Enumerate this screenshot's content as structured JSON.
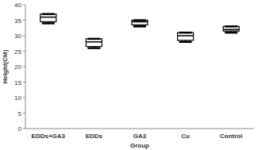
{
  "chart_data": {
    "type": "box",
    "x_label": "Group",
    "y_label": "Height(CM)",
    "categories": [
      "EDDs+GA3",
      "EDDs",
      "GA3",
      "Cu",
      "Control"
    ],
    "min": [
      34,
      26,
      33,
      28,
      31
    ],
    "q1": [
      34.5,
      26.5,
      33.5,
      28.5,
      31.5
    ],
    "median": [
      36,
      28,
      34.5,
      30,
      32
    ],
    "q3": [
      37,
      29,
      35,
      31,
      33
    ],
    "max": [
      37,
      29,
      35,
      31,
      33
    ],
    "color": "#000000",
    "ylim": [
      0,
      40
    ],
    "yticks": [
      0,
      5,
      10,
      15,
      20,
      25,
      30,
      35,
      40
    ],
    "grid": false
  }
}
